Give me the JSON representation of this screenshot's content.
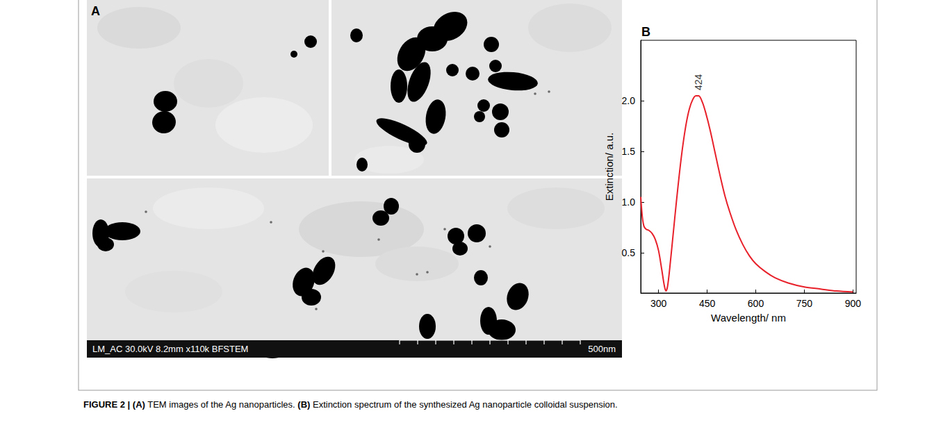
{
  "figure": {
    "panel_a": {
      "panel_label": "A",
      "info_bar": "LM_AC 30.0kV 8.2mm x110k BFSTEM",
      "scale_label": "500nm"
    },
    "caption": [
      {
        "text": "FIGURE 2 | (A)",
        "bold": true
      },
      {
        "text": " TEM images of the Ag nanoparticles. ",
        "bold": false
      },
      {
        "text": "(B)",
        "bold": true
      },
      {
        "text": " Extinction spectrum of the synthesized Ag nanoparticle colloidal suspension.",
        "bold": false
      }
    ]
  },
  "chart_data": {
    "type": "line",
    "panel_label": "B",
    "xlabel": "Wavelength/ nm",
    "ylabel": "Extinction/ a.u.",
    "x": [
      245,
      250,
      255,
      262,
      270,
      280,
      290,
      300,
      310,
      318,
      323,
      328,
      335,
      345,
      355,
      365,
      375,
      385,
      395,
      405,
      415,
      424,
      435,
      445,
      460,
      475,
      490,
      505,
      520,
      540,
      560,
      580,
      600,
      630,
      660,
      700,
      750,
      800,
      850,
      900
    ],
    "values": [
      1.05,
      0.85,
      0.76,
      0.73,
      0.72,
      0.69,
      0.63,
      0.52,
      0.33,
      0.17,
      0.12,
      0.17,
      0.36,
      0.68,
      1.0,
      1.3,
      1.56,
      1.77,
      1.92,
      2.01,
      2.05,
      2.05,
      1.99,
      1.89,
      1.7,
      1.48,
      1.26,
      1.06,
      0.9,
      0.72,
      0.58,
      0.47,
      0.39,
      0.31,
      0.25,
      0.2,
      0.16,
      0.14,
      0.12,
      0.11
    ],
    "color": "#e8202a",
    "xlim": [
      245,
      910
    ],
    "ylim": [
      0.1,
      2.6
    ],
    "xticks": [
      300,
      450,
      600,
      750,
      900
    ],
    "yticks": [
      {
        "value": 0.5,
        "label": "0.5"
      },
      {
        "value": 1,
        "label": "1.0"
      },
      {
        "value": 1.5,
        "label": "1.5"
      },
      {
        "value": 2,
        "label": "2.0"
      }
    ],
    "annotations": [
      {
        "text": "424",
        "x": 424,
        "y": 2.05
      }
    ],
    "grid": false
  }
}
